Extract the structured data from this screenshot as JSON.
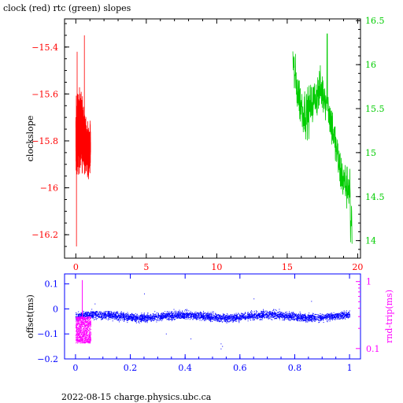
{
  "title": "clock (red) rtc (green) slopes",
  "footer": "2022-08-15 charge.physics.ubc.ca",
  "chart_data": [
    {
      "type": "line",
      "title": "clock (red) rtc (green) slopes",
      "xlim": [
        -0.8,
        20.2
      ],
      "x_ticks": [
        "0",
        "5",
        "10",
        "15",
        "20"
      ],
      "left_axis": {
        "label": "clockslope",
        "color": "#ff0000",
        "ylim": [
          -16.3,
          -15.28
        ],
        "ticks": [
          "-15.4",
          "-15.6",
          "-15.8",
          "-16",
          "-16.2"
        ]
      },
      "right_axis": {
        "label": "",
        "color": "#00cc00",
        "ylim": [
          13.8,
          16.52
        ],
        "ticks": [
          "14",
          "14.5",
          "15",
          "15.5",
          "16",
          "16.5"
        ]
      },
      "series": [
        {
          "color": "#ff0000",
          "axis": "left",
          "x_range": [
            0.0,
            1.05
          ],
          "y_range": [
            -16.25,
            -15.35
          ],
          "points": [
            [
              0.05,
              -15.55
            ],
            [
              0.12,
              -15.42
            ],
            [
              0.2,
              -16.25
            ],
            [
              0.28,
              -15.6
            ],
            [
              0.35,
              -16.0
            ],
            [
              0.42,
              -15.5
            ],
            [
              0.5,
              -16.05
            ],
            [
              0.58,
              -15.35
            ],
            [
              0.65,
              -15.8
            ],
            [
              0.72,
              -15.9
            ],
            [
              0.8,
              -15.7
            ],
            [
              0.88,
              -16.05
            ],
            [
              0.95,
              -15.75
            ],
            [
              1.0,
              -15.8
            ]
          ]
        },
        {
          "color": "#00cc00",
          "axis": "right",
          "x_range": [
            15.4,
            19.6
          ],
          "y_range": [
            13.9,
            16.35
          ],
          "points": [
            [
              15.5,
              16.1
            ],
            [
              15.7,
              15.7
            ],
            [
              16.0,
              15.4
            ],
            [
              16.3,
              15.0
            ],
            [
              16.6,
              15.6
            ],
            [
              16.9,
              14.8
            ],
            [
              17.2,
              15.3
            ],
            [
              17.5,
              15.6
            ],
            [
              17.8,
              16.2
            ],
            [
              18.0,
              14.9
            ],
            [
              18.2,
              15.5
            ],
            [
              18.5,
              14.6
            ],
            [
              18.8,
              15.2
            ],
            [
              19.0,
              15.0
            ],
            [
              19.2,
              14.5
            ],
            [
              19.4,
              14.1
            ],
            [
              19.55,
              14.0
            ]
          ]
        }
      ]
    },
    {
      "type": "scatter",
      "xlim": [
        -0.04,
        1.04
      ],
      "x_ticks": [
        "0",
        "0.2",
        "0.4",
        "0.6",
        "0.8",
        "1"
      ],
      "left_axis": {
        "label": "offset(ms)",
        "color": "#0000ff",
        "ylim": [
          -0.2,
          0.14
        ],
        "ticks": [
          "0.1",
          "0",
          "-0.1",
          "-0.2"
        ]
      },
      "right_axis": {
        "label": "rnd-trip(ms)",
        "color": "#ff00ff",
        "scale": "log",
        "ylim": [
          0.07,
          1.3
        ],
        "ticks": [
          "1",
          "0.1"
        ]
      },
      "series": [
        {
          "color": "#0000ff",
          "axis": "left",
          "x_range": [
            0.0,
            1.0
          ],
          "y_center": -0.03,
          "y_spread": 0.03
        },
        {
          "color": "#ff00ff",
          "axis": "right",
          "x_range": [
            0.0,
            0.055
          ],
          "y_range": [
            0.12,
            0.3
          ]
        }
      ]
    }
  ]
}
